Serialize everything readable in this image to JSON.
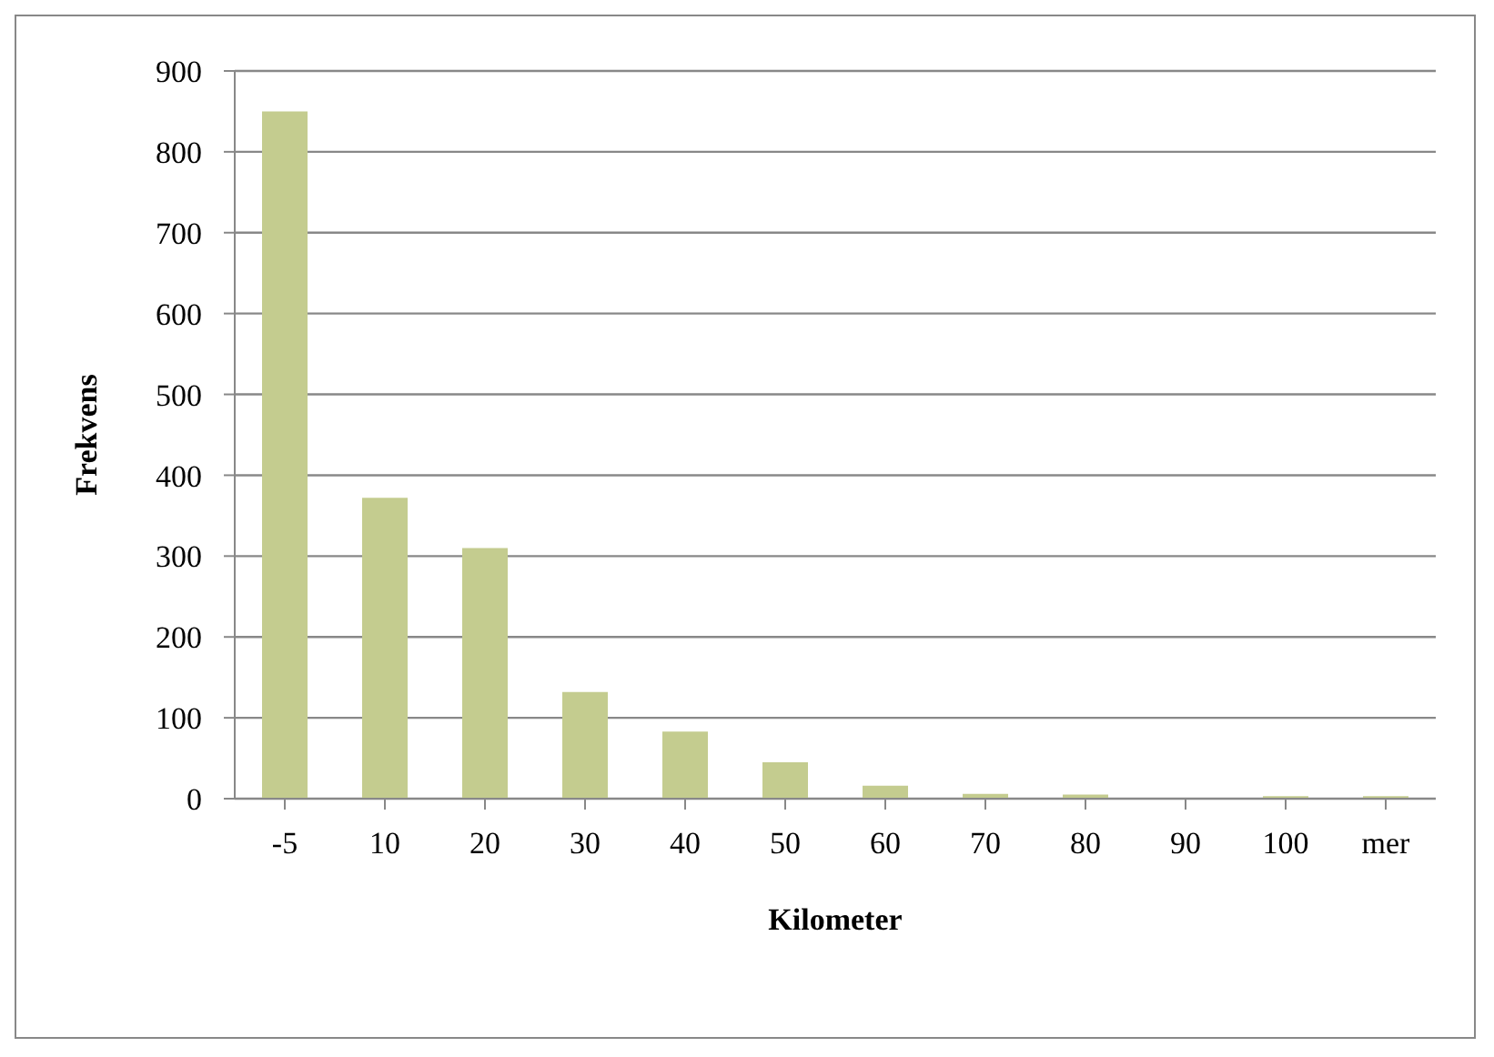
{
  "chart_data": {
    "type": "bar",
    "xlabel": "Kilometer",
    "ylabel": "Frekvens",
    "categories": [
      "-5",
      "10",
      "20",
      "30",
      "40",
      "50",
      "60",
      "70",
      "80",
      "90",
      "100",
      "mer"
    ],
    "values": [
      850,
      372,
      310,
      132,
      83,
      45,
      16,
      6,
      5,
      0,
      3,
      3
    ],
    "color": "#c4cc8f",
    "ylim": [
      0,
      900
    ],
    "yticks": [
      0,
      100,
      200,
      300,
      400,
      500,
      600,
      700,
      800,
      900
    ],
    "grid": "y",
    "legend": false
  }
}
